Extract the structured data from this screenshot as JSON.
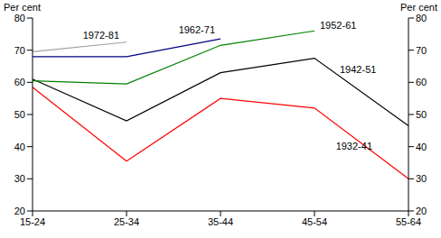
{
  "chart_data": {
    "type": "line",
    "ylabel": "Per cent",
    "y2label": "Per cent",
    "categories": [
      "15-24",
      "25-34",
      "35-44",
      "45-54",
      "55-64"
    ],
    "series": [
      {
        "name": "1932-41",
        "color": "#ff0000",
        "values": [
          58.5,
          35.5,
          55,
          52,
          30
        ]
      },
      {
        "name": "1942-51",
        "color": "#000000",
        "values": [
          61,
          48,
          63,
          67.5,
          46.5
        ]
      },
      {
        "name": "1952-61",
        "color": "#008000",
        "values": [
          60.5,
          59.5,
          71.5,
          76,
          null
        ]
      },
      {
        "name": "1962-71",
        "color": "#000080",
        "values": [
          68,
          68,
          73.5,
          null,
          null
        ]
      },
      {
        "name": "1972-81",
        "color": "#a0a0a0",
        "values": [
          69.5,
          72.5,
          null,
          null,
          null
        ]
      }
    ],
    "ylim": [
      20,
      80
    ],
    "yticks": [
      20,
      30,
      40,
      50,
      60,
      70,
      80
    ],
    "y2lim": [
      20,
      80
    ],
    "y2ticks": [
      20,
      30,
      40,
      50,
      60,
      70,
      80
    ],
    "grid": false
  }
}
